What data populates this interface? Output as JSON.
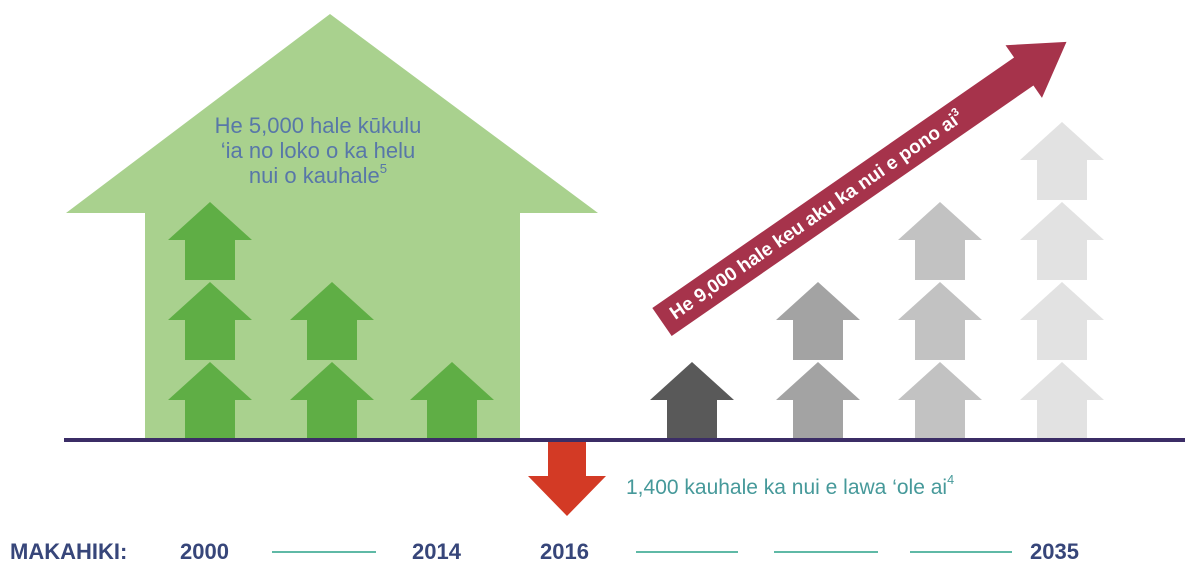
{
  "callouts": {
    "built": {
      "lines": [
        "He 5,000 hale kūkulu",
        "‘ia no loko o ka helu",
        "nui o kauhale"
      ],
      "note": "5"
    },
    "needed": {
      "text": "He 9,000 hale keu aku ka nui e pono ai",
      "note": "3"
    },
    "shortfall": {
      "text": "1,400 kauhale ka nui e lawa ‘ole ai",
      "note": "4"
    }
  },
  "timeline": {
    "label": "MAKAHIKI:",
    "years": [
      "2000",
      "2014",
      "2016",
      "2035"
    ]
  }
}
